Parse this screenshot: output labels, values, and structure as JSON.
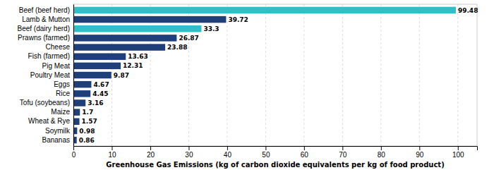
{
  "chart_data": {
    "type": "bar",
    "orientation": "horizontal",
    "categories": [
      "Beef (beef herd)",
      "Lamb & Mutton",
      "Beef (dairy herd)",
      "Prawns (farmed)",
      "Cheese",
      "Fish (farmed)",
      "Pig Meat",
      "Poultry Meat",
      "Eggs",
      "Rice",
      "Tofu (soybeans)",
      "Maize",
      "Wheat & Rye",
      "Soymilk",
      "Bananas"
    ],
    "values": [
      99.48,
      39.72,
      33.3,
      26.87,
      23.88,
      13.63,
      12.31,
      9.87,
      4.67,
      4.45,
      3.16,
      1.7,
      1.57,
      0.98,
      0.86
    ],
    "colors": [
      "#30bfc8",
      "#1e3f7a",
      "#30bfc8",
      "#1e3f7a",
      "#1e3f7a",
      "#1e3f7a",
      "#1e3f7a",
      "#1e3f7a",
      "#1e3f7a",
      "#1e3f7a",
      "#1e3f7a",
      "#1e3f7a",
      "#1e3f7a",
      "#1e3f7a",
      "#1e3f7a"
    ],
    "xlabel": "Greenhouse Gas Emissions (kg of carbon dioxide equivalents per kg of food product)",
    "xlim": [
      0,
      105
    ],
    "xticks": [
      0,
      10,
      20,
      30,
      40,
      50,
      60,
      70,
      80,
      90,
      100
    ],
    "grid": true,
    "data_labels": true
  }
}
